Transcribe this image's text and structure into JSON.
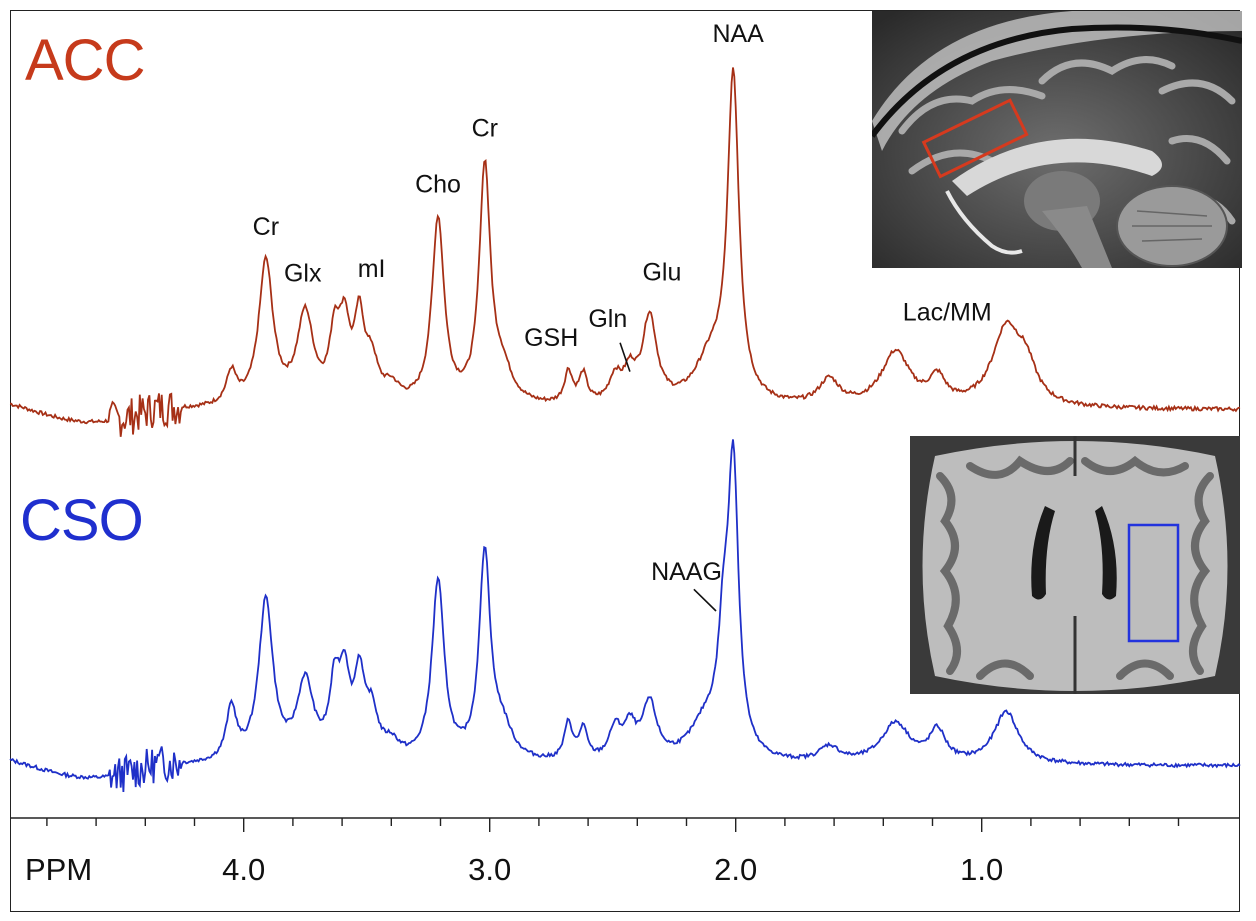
{
  "colors": {
    "acc": "#c63a1b",
    "acc_line": "#a63016",
    "cso": "#1f2fce",
    "cso_line": "#1f30c8",
    "axis": "#222222",
    "text": "#111111"
  },
  "chart_data": {
    "type": "line",
    "title": "",
    "xlabel": "PPM",
    "ylabel": "",
    "x_direction": "reversed",
    "xlim": [
      4.95,
      -0.05
    ],
    "x_ticks": [
      4.0,
      3.0,
      2.0,
      1.0
    ],
    "x_tick_labels": [
      "4.0",
      "3.0",
      "2.0",
      "1.0"
    ],
    "y_units": "relative intensity (NAA peak = 1.0, each series normalized)",
    "series": [
      {
        "name": "ACC",
        "region_label": "ACC",
        "baseline_position": "top",
        "baseline_level": 0,
        "spectrum_range": [
          4.95,
          -0.05
        ],
        "peaks": [
          {
            "ppm": 4.05,
            "amp": 0.1,
            "width": 0.025
          },
          {
            "ppm": 3.91,
            "amp": 0.45,
            "width": 0.035
          },
          {
            "ppm": 3.75,
            "amp": 0.28,
            "width": 0.04
          },
          {
            "ppm": 3.63,
            "amp": 0.2,
            "width": 0.025
          },
          {
            "ppm": 3.59,
            "amp": 0.22,
            "width": 0.025
          },
          {
            "ppm": 3.53,
            "amp": 0.25,
            "width": 0.025
          },
          {
            "ppm": 3.48,
            "amp": 0.12,
            "width": 0.03
          },
          {
            "ppm": 3.4,
            "amp": 0.05,
            "width": 0.04
          },
          {
            "ppm": 3.21,
            "amp": 0.58,
            "width": 0.03
          },
          {
            "ppm": 3.02,
            "amp": 0.73,
            "width": 0.027
          },
          {
            "ppm": 2.95,
            "amp": 0.1,
            "width": 0.05
          },
          {
            "ppm": 2.68,
            "amp": 0.1,
            "width": 0.02
          },
          {
            "ppm": 2.62,
            "amp": 0.09,
            "width": 0.02
          },
          {
            "ppm": 2.49,
            "amp": 0.08,
            "width": 0.03
          },
          {
            "ppm": 2.43,
            "amp": 0.09,
            "width": 0.03
          },
          {
            "ppm": 2.35,
            "amp": 0.27,
            "width": 0.035
          },
          {
            "ppm": 2.1,
            "amp": 0.14,
            "width": 0.08
          },
          {
            "ppm": 2.01,
            "amp": 1.0,
            "width": 0.028
          },
          {
            "ppm": 1.62,
            "amp": 0.08,
            "width": 0.05
          },
          {
            "ppm": 1.35,
            "amp": 0.17,
            "width": 0.07
          },
          {
            "ppm": 1.18,
            "amp": 0.08,
            "width": 0.04
          },
          {
            "ppm": 0.9,
            "amp": 0.24,
            "width": 0.07
          },
          {
            "ppm": 0.82,
            "amp": 0.1,
            "width": 0.05
          }
        ],
        "labels": [
          {
            "text": "Cr",
            "ppm": 3.91
          },
          {
            "text": "Glx",
            "ppm": 3.73
          },
          {
            "text": "mI",
            "ppm": 3.53
          },
          {
            "text": "Cho",
            "ppm": 3.21
          },
          {
            "text": "Cr",
            "ppm": 3.02
          },
          {
            "text": "GSH",
            "ppm": 2.68
          },
          {
            "text": "Gln",
            "ppm": 2.48
          },
          {
            "text": "Glu",
            "ppm": 2.35
          },
          {
            "text": "NAA",
            "ppm": 2.01
          },
          {
            "text": "Lac/MM",
            "ppm": 1.16
          }
        ]
      },
      {
        "name": "CSO",
        "region_label": "CSO",
        "baseline_position": "bottom",
        "baseline_level": 0,
        "spectrum_range": [
          4.95,
          -0.05
        ],
        "peaks": [
          {
            "ppm": 4.05,
            "amp": 0.17,
            "width": 0.025
          },
          {
            "ppm": 3.91,
            "amp": 0.52,
            "width": 0.035
          },
          {
            "ppm": 3.75,
            "amp": 0.25,
            "width": 0.04
          },
          {
            "ppm": 3.63,
            "amp": 0.22,
            "width": 0.025
          },
          {
            "ppm": 3.59,
            "amp": 0.24,
            "width": 0.025
          },
          {
            "ppm": 3.53,
            "amp": 0.25,
            "width": 0.025
          },
          {
            "ppm": 3.48,
            "amp": 0.14,
            "width": 0.03
          },
          {
            "ppm": 3.4,
            "amp": 0.05,
            "width": 0.04
          },
          {
            "ppm": 3.21,
            "amp": 0.58,
            "width": 0.03
          },
          {
            "ppm": 3.02,
            "amp": 0.66,
            "width": 0.027
          },
          {
            "ppm": 2.95,
            "amp": 0.1,
            "width": 0.05
          },
          {
            "ppm": 2.68,
            "amp": 0.12,
            "width": 0.02
          },
          {
            "ppm": 2.62,
            "amp": 0.1,
            "width": 0.02
          },
          {
            "ppm": 2.49,
            "amp": 0.1,
            "width": 0.03
          },
          {
            "ppm": 2.43,
            "amp": 0.1,
            "width": 0.03
          },
          {
            "ppm": 2.35,
            "amp": 0.18,
            "width": 0.035
          },
          {
            "ppm": 2.12,
            "amp": 0.12,
            "width": 0.08
          },
          {
            "ppm": 2.05,
            "amp": 0.3,
            "width": 0.025
          },
          {
            "ppm": 2.01,
            "amp": 0.92,
            "width": 0.026
          },
          {
            "ppm": 1.62,
            "amp": 0.05,
            "width": 0.05
          },
          {
            "ppm": 1.35,
            "amp": 0.13,
            "width": 0.07
          },
          {
            "ppm": 1.18,
            "amp": 0.1,
            "width": 0.04
          },
          {
            "ppm": 0.9,
            "amp": 0.17,
            "width": 0.06
          }
        ],
        "labels": [
          {
            "text": "NAAG",
            "ppm": 2.05
          }
        ]
      }
    ]
  },
  "insets": [
    {
      "name": "sagittal-mri-inset",
      "view": "sagittal",
      "roi_region": "ACC",
      "roi_color": "#d63a1e"
    },
    {
      "name": "axial-mri-inset",
      "view": "axial",
      "roi_region": "CSO",
      "roi_color": "#2233dd"
    }
  ]
}
